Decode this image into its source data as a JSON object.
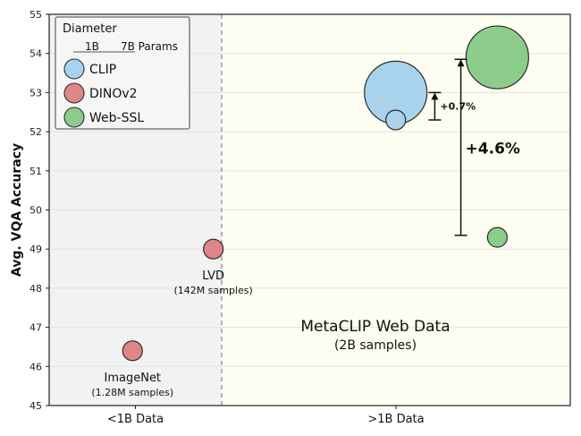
{
  "chart_data": {
    "type": "scatter",
    "ylabel": "Avg. VQA Accuracy",
    "ylim": [
      45,
      55
    ],
    "yticks": [
      45,
      46,
      47,
      48,
      49,
      50,
      51,
      52,
      53,
      54,
      55
    ],
    "x_categories": [
      "<1B Data",
      ">1B Data"
    ],
    "grid": true,
    "legend": {
      "title": "Diameter",
      "size_labels": [
        "1B",
        "7B Params"
      ],
      "placement": "top-left",
      "entries": [
        {
          "name": "CLIP",
          "color": "#a9d3ec"
        },
        {
          "name": "DINOv2",
          "color": "#de8688"
        },
        {
          "name": "Web-SSL",
          "color": "#8ccd8c"
        }
      ]
    },
    "points": [
      {
        "series": "DINOv2",
        "category": "<1B Data",
        "x": -0.18,
        "y": 46.4,
        "params_b": 1,
        "label": "ImageNet",
        "sublabel": "(1.28M samples)"
      },
      {
        "series": "DINOv2",
        "category": "<1B Data",
        "x": 0.13,
        "y": 49.0,
        "params_b": 1,
        "label": "LVD",
        "sublabel": "(142M samples)"
      },
      {
        "series": "CLIP",
        "category": ">1B Data",
        "x": 0.83,
        "y": 53.0,
        "params_b": 7
      },
      {
        "series": "CLIP",
        "category": ">1B Data",
        "x": 0.83,
        "y": 52.3,
        "params_b": 1
      },
      {
        "series": "Web-SSL",
        "category": ">1B Data",
        "x": 1.22,
        "y": 53.9,
        "params_b": 7
      },
      {
        "series": "Web-SSL",
        "category": ">1B Data",
        "x": 1.22,
        "y": 49.3,
        "params_b": 1
      }
    ],
    "annotations": [
      {
        "text": "+0.7%",
        "x": 0.98,
        "y_from": 52.3,
        "y_to": 53.0
      },
      {
        "text": "+4.6%",
        "x": 1.08,
        "y_from": 49.35,
        "y_to": 53.85
      }
    ],
    "regions": [
      {
        "category": "<1B Data",
        "color": "#f2f2f2"
      },
      {
        "category": ">1B Data",
        "color": "#fdfdf1",
        "title": "MetaCLIP Web Data",
        "subtitle": "(2B samples)"
      }
    ]
  }
}
